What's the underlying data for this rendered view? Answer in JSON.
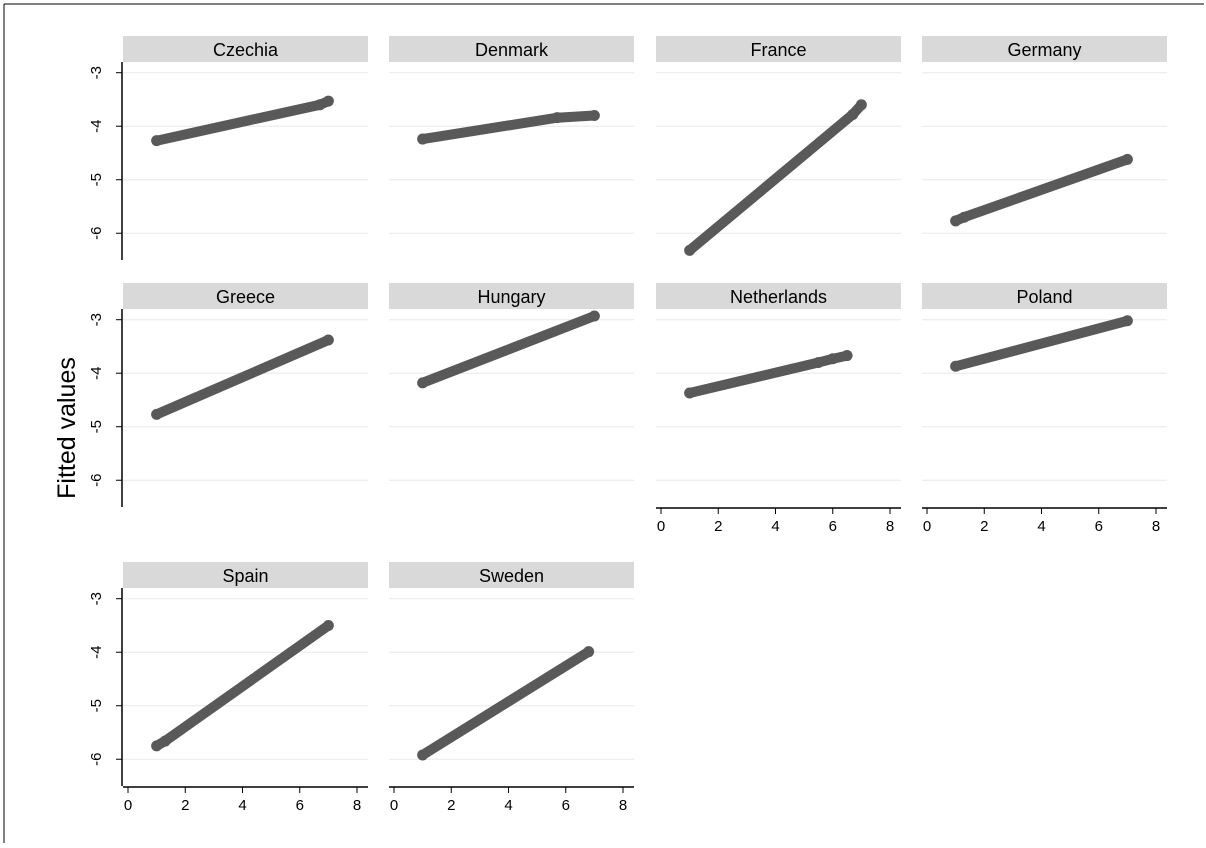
{
  "chart_data": {
    "type": "scatter",
    "ylabel": "Fitted values",
    "xlabel": "",
    "xlim": [
      0,
      8
    ],
    "ylim": [
      -6.5,
      -2.8
    ],
    "xticks": [
      0,
      2,
      4,
      6,
      8
    ],
    "yticks": [
      -3,
      -4,
      -5,
      -6
    ],
    "grid": true,
    "colors": {
      "marker": "#595959",
      "strip": "#d9d9d9",
      "grid": "#e8e8e8",
      "axis": "#000000"
    },
    "panels": [
      {
        "title": "Czechia",
        "x": [
          1,
          6.7,
          7.0
        ],
        "y": [
          -4.27,
          -3.6,
          -3.53
        ]
      },
      {
        "title": "Denmark",
        "x": [
          1,
          5.7,
          7.0
        ],
        "y": [
          -4.24,
          -3.84,
          -3.8
        ]
      },
      {
        "title": "France",
        "x": [
          1,
          6.7,
          7.0
        ],
        "y": [
          -6.32,
          -3.78,
          -3.6
        ]
      },
      {
        "title": "Germany",
        "x": [
          1,
          1.3,
          7.0
        ],
        "y": [
          -5.77,
          -5.7,
          -4.62
        ]
      },
      {
        "title": "Greece",
        "x": [
          1,
          7.0
        ],
        "y": [
          -4.77,
          -3.38
        ]
      },
      {
        "title": "Hungary",
        "x": [
          1,
          7.0
        ],
        "y": [
          -4.18,
          -2.93
        ]
      },
      {
        "title": "Netherlands",
        "x": [
          1,
          5.5,
          6.0,
          6.5
        ],
        "y": [
          -4.37,
          -3.8,
          -3.73,
          -3.67
        ]
      },
      {
        "title": "Poland",
        "x": [
          1,
          7.0
        ],
        "y": [
          -3.87,
          -3.02
        ]
      },
      {
        "title": "Spain",
        "x": [
          1,
          1.3,
          7.0
        ],
        "y": [
          -5.75,
          -5.66,
          -3.5
        ]
      },
      {
        "title": "Sweden",
        "x": [
          1,
          6.8
        ],
        "y": [
          -5.92,
          -3.99
        ]
      }
    ]
  }
}
